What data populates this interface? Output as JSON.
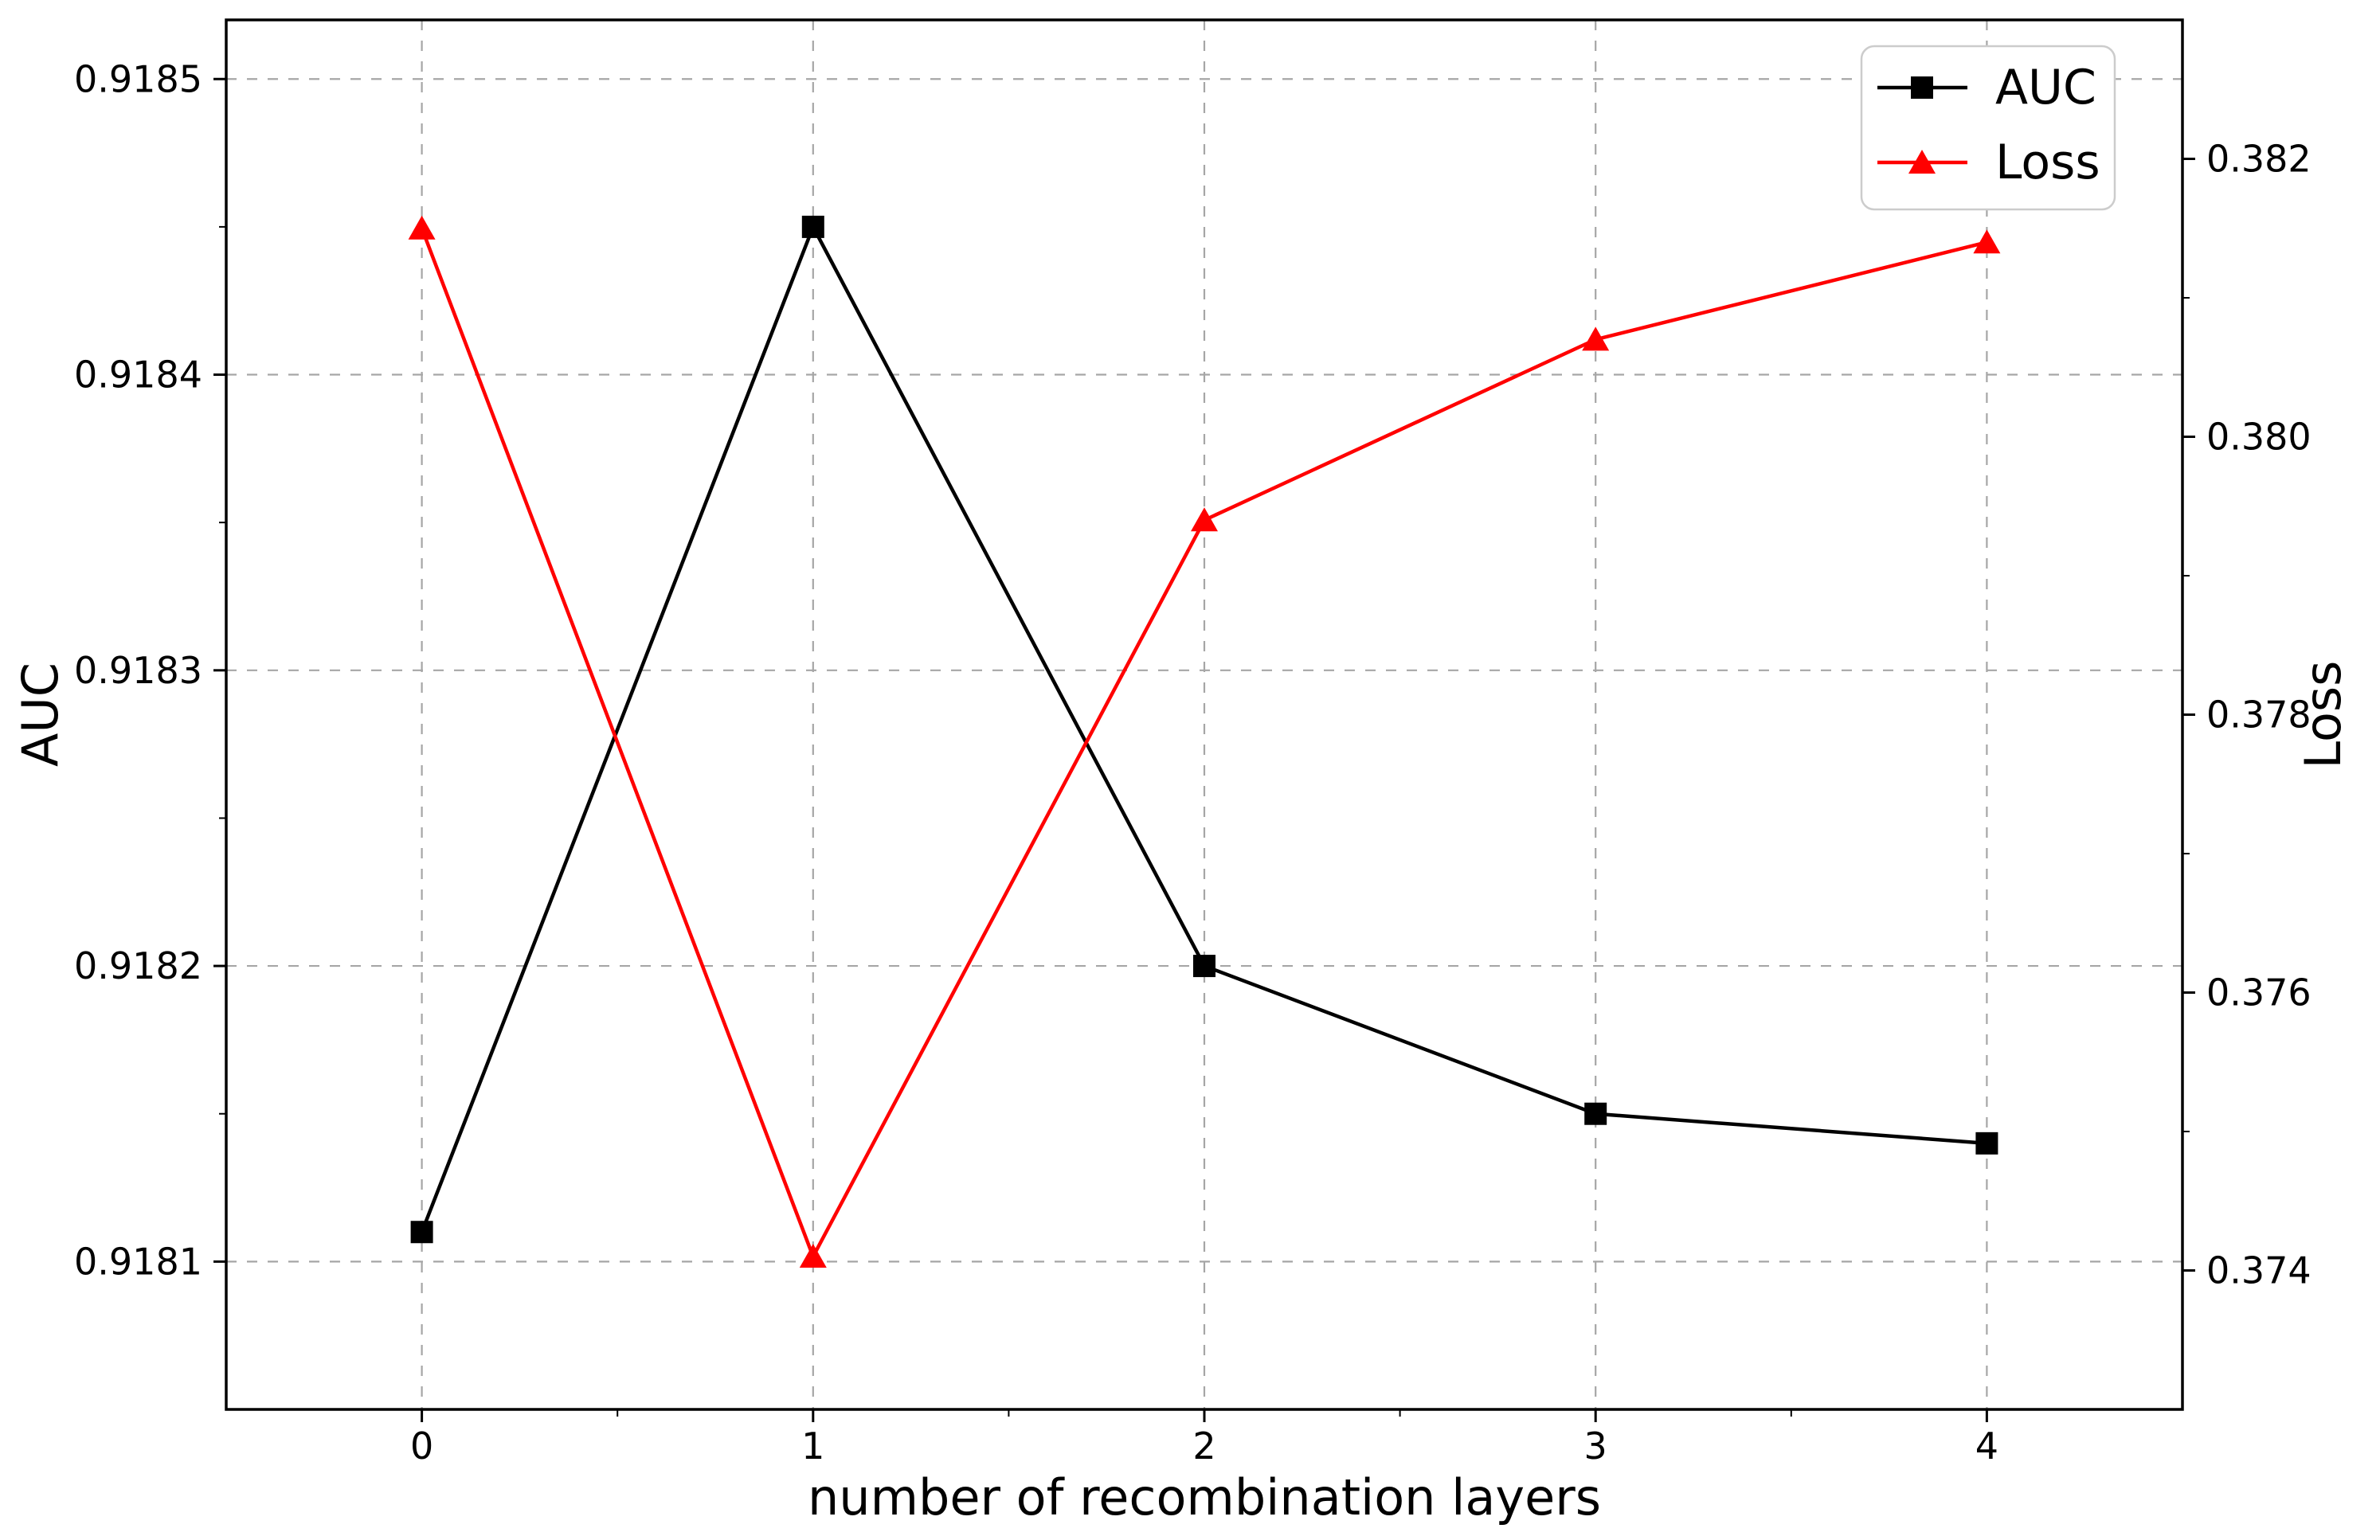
{
  "chart_data": {
    "type": "line",
    "title": "",
    "xlabel": "number of recombination layers",
    "ylabel_left": "AUC",
    "ylabel_right": "Loss",
    "x": [
      0,
      1,
      2,
      3,
      4
    ],
    "x_tick_labels": [
      "0",
      "1",
      "2",
      "3",
      "4"
    ],
    "xlim": [
      -0.5,
      4.5
    ],
    "series": [
      {
        "name": "AUC",
        "axis": "left",
        "color": "#000000",
        "marker": "square",
        "values": [
          0.91811,
          0.91845,
          0.9182,
          0.91815,
          0.91814
        ]
      },
      {
        "name": "Loss",
        "axis": "right",
        "color": "#ff0000",
        "marker": "triangle",
        "values": [
          0.3815,
          0.3741,
          0.3794,
          0.3807,
          0.3814
        ]
      }
    ],
    "left_axis": {
      "label": "AUC",
      "ticks": [
        0.9181,
        0.9182,
        0.9183,
        0.9184,
        0.9185
      ],
      "tick_labels": [
        "0.9181",
        "0.9182",
        "0.9183",
        "0.9184",
        "0.9185"
      ],
      "minor_step": 5e-05,
      "lim": [
        0.91805,
        0.91852
      ]
    },
    "right_axis": {
      "label": "Loss",
      "ticks": [
        0.374,
        0.376,
        0.378,
        0.38,
        0.382
      ],
      "tick_labels": [
        "0.374",
        "0.376",
        "0.378",
        "0.380",
        "0.382"
      ],
      "minor_step": 0.001,
      "lim": [
        0.373,
        0.383
      ]
    },
    "grid": true,
    "grid_style": "dashed",
    "legend": {
      "position": "top-right",
      "entries": [
        {
          "label": "AUC",
          "color": "#000000",
          "marker": "square"
        },
        {
          "label": "Loss",
          "color": "#ff0000",
          "marker": "triangle"
        }
      ]
    },
    "colors": {
      "auc_line": "#000000",
      "loss_line": "#ff0000",
      "grid": "#a6a6a6",
      "spine": "#000000",
      "legend_border": "#cccccc",
      "background": "#ffffff"
    }
  }
}
